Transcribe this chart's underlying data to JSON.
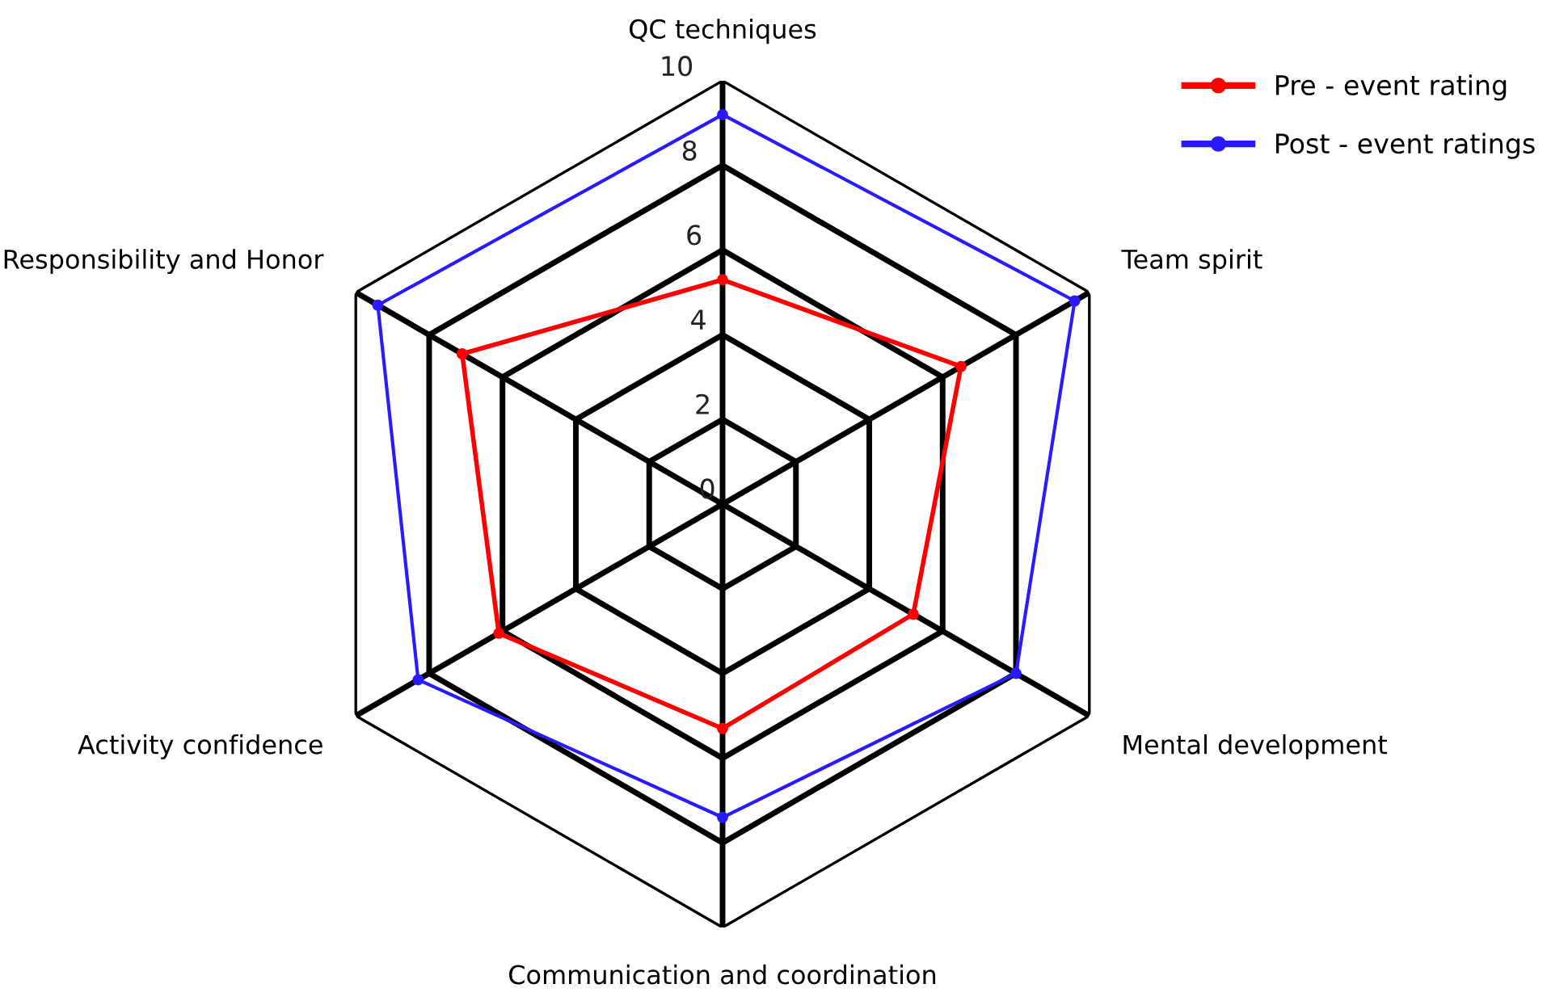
{
  "chart_data": {
    "type": "radar",
    "categories": [
      "QC techniques",
      "Team spirit",
      "Mental development",
      "Communication and coordination",
      "Activity confidence",
      "Responsibility and Honor"
    ],
    "series": [
      {
        "name": "Pre - event rating",
        "color": "#ff0000",
        "values": [
          5.3,
          6.5,
          5.2,
          5.3,
          6.1,
          7.1
        ]
      },
      {
        "name": "Post - event ratings",
        "color": "#2a1aff",
        "values": [
          9.2,
          9.6,
          8.0,
          7.4,
          8.3,
          9.4
        ]
      }
    ],
    "ylim": [
      0,
      10
    ],
    "yticks": [
      0,
      2,
      4,
      6,
      8,
      10
    ],
    "grid": true,
    "legend": "top right",
    "marker": "circle",
    "line_style": "solid"
  }
}
